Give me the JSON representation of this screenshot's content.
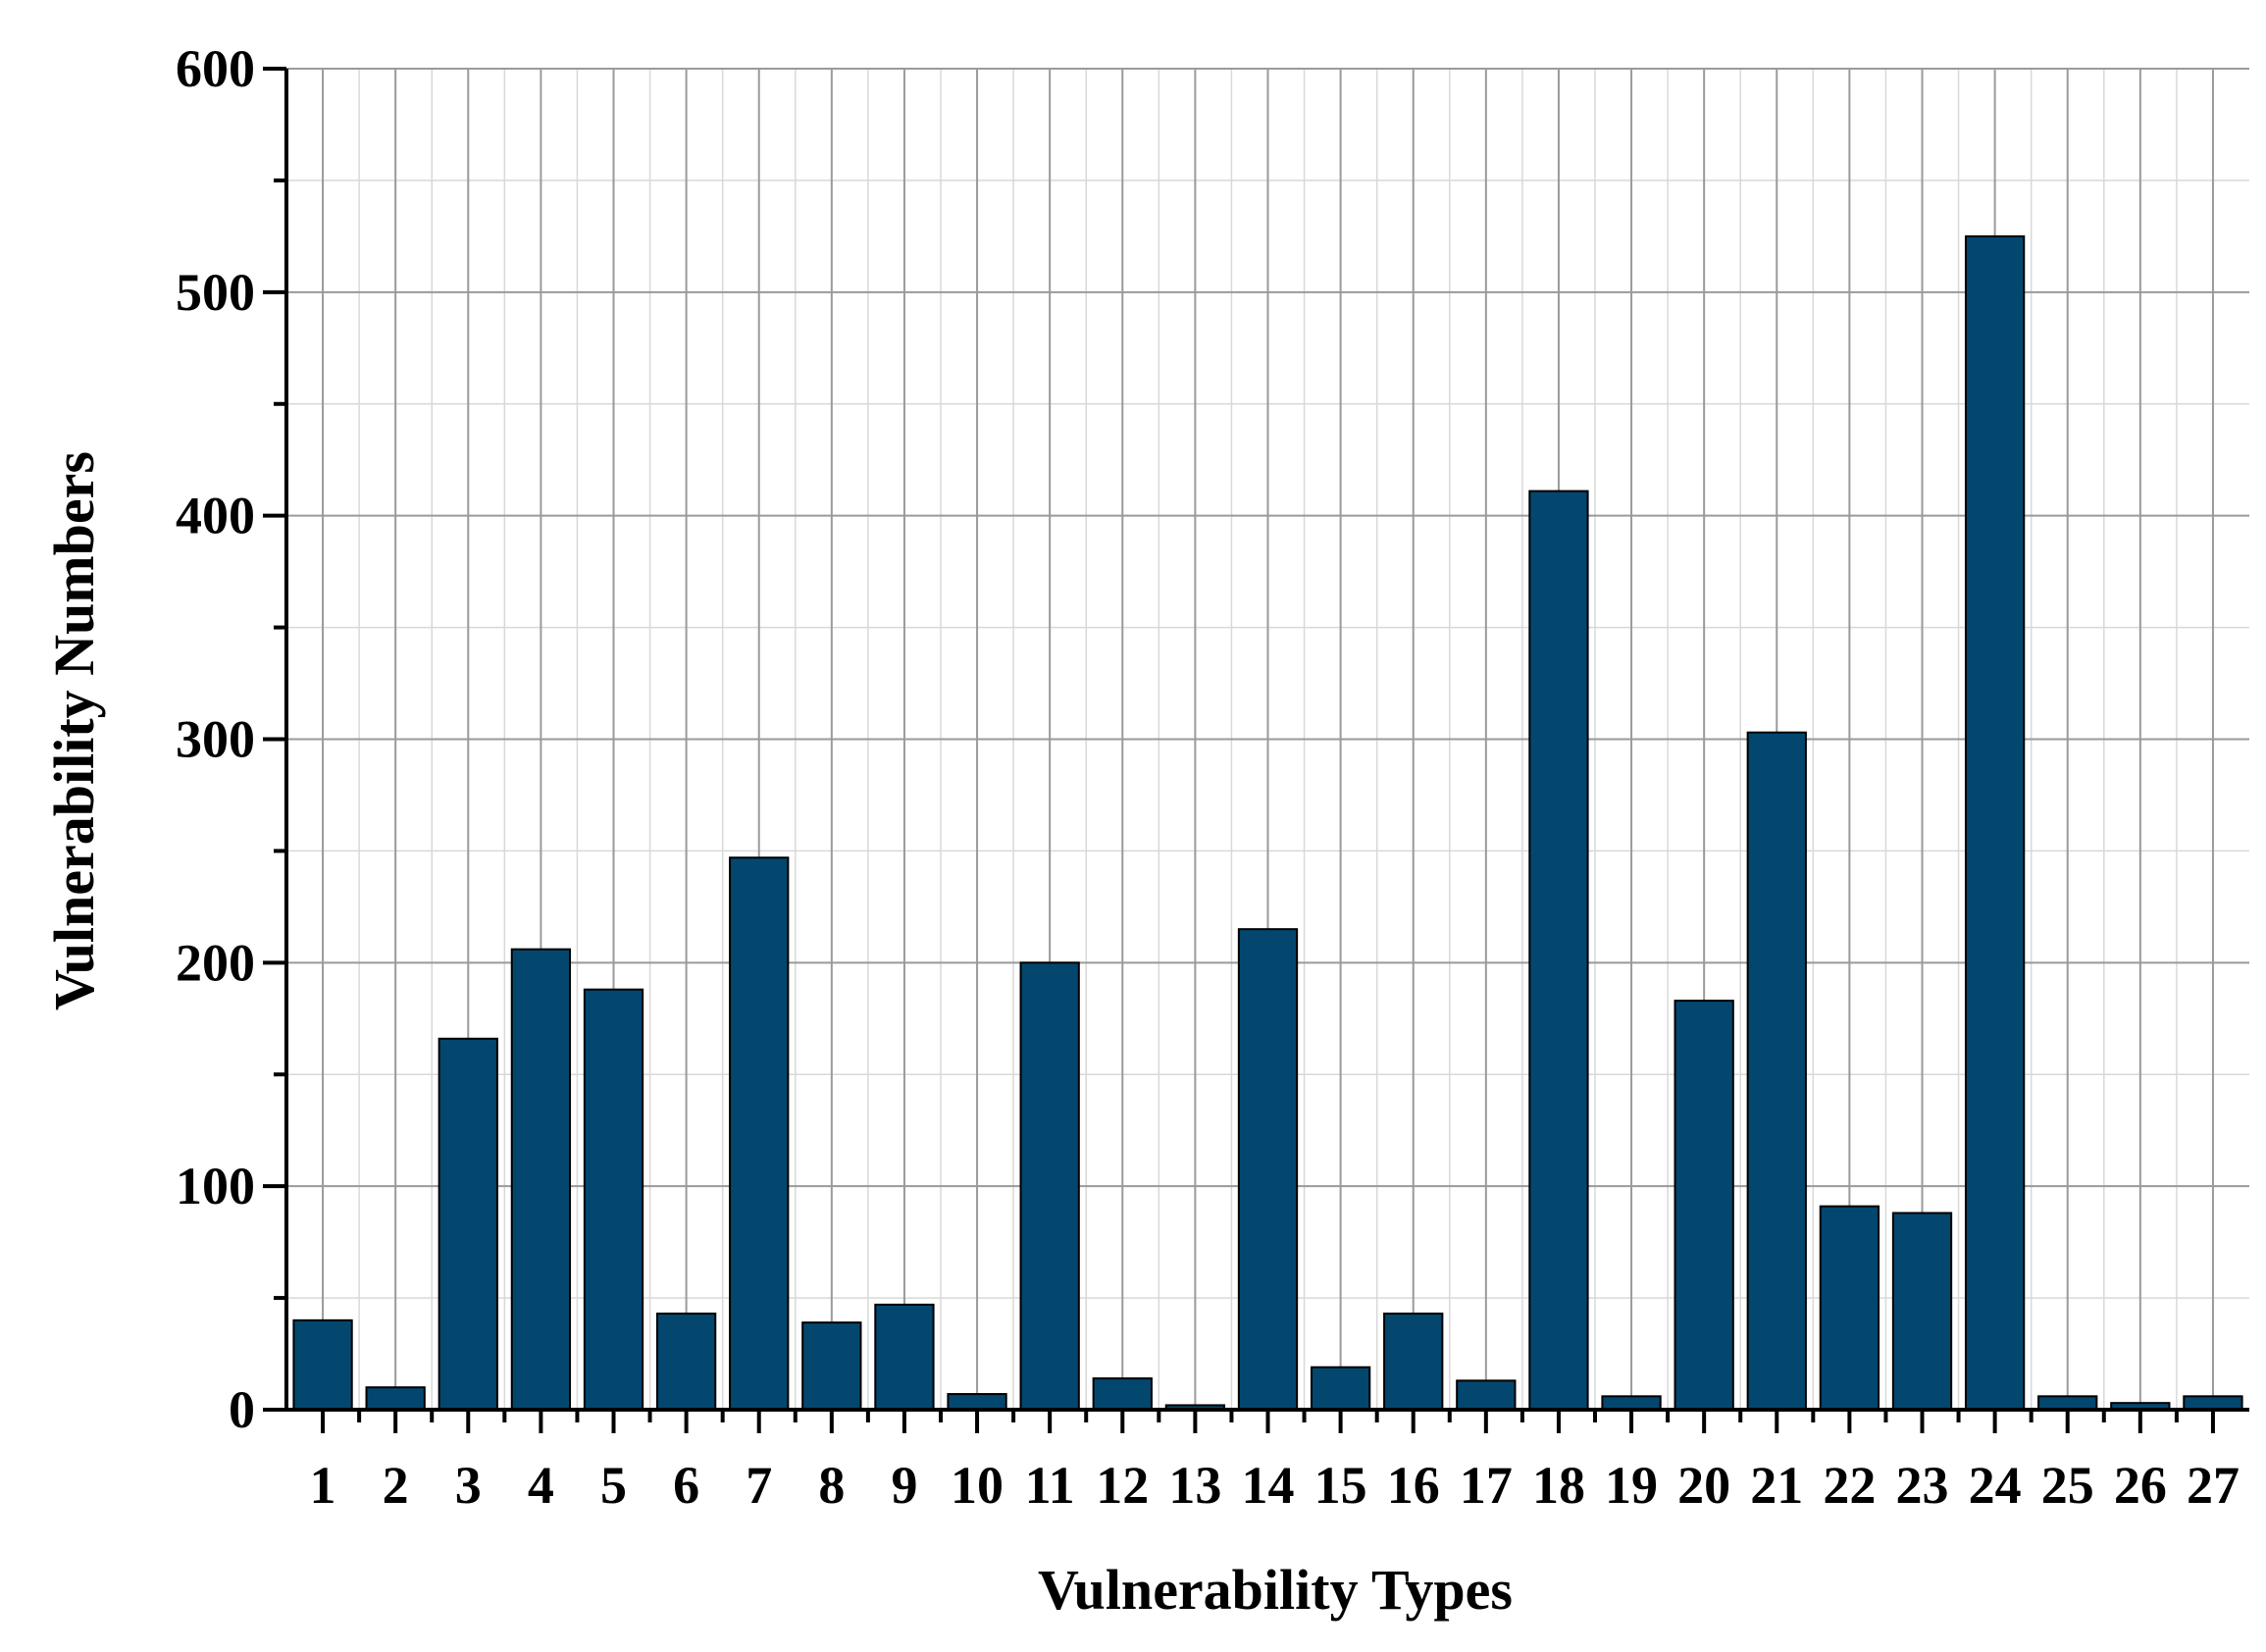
{
  "chart_data": {
    "type": "bar",
    "xlabel": "Vulnerability Types",
    "ylabel": "Vulnerability Numbers",
    "categories": [
      "1",
      "2",
      "3",
      "4",
      "5",
      "6",
      "7",
      "8",
      "9",
      "10",
      "11",
      "12",
      "13",
      "14",
      "15",
      "16",
      "17",
      "18",
      "19",
      "20",
      "21",
      "22",
      "23",
      "24",
      "25",
      "26",
      "27"
    ],
    "values": [
      40,
      10,
      166,
      206,
      188,
      43,
      247,
      39,
      47,
      7,
      200,
      14,
      2,
      215,
      19,
      43,
      13,
      411,
      6,
      183,
      303,
      91,
      88,
      525,
      6,
      3,
      6
    ],
    "ylim": [
      0,
      600
    ],
    "yticks": [
      "0",
      "100",
      "200",
      "300",
      "400",
      "500",
      "600"
    ],
    "grid": true,
    "bar_color": "#03476f",
    "bar_edge_color": "#000000"
  }
}
